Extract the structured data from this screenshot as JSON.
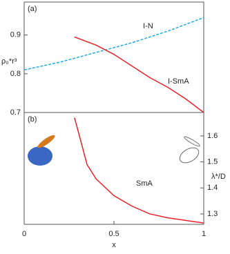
{
  "chart_data": [
    {
      "type": "line",
      "label": "(a)",
      "ylabel": "ρ₀*r³",
      "xlim": [
        0,
        1
      ],
      "ylim": [
        0.7,
        0.985
      ],
      "yticks": [
        0.7,
        0.8,
        0.9
      ],
      "series": [
        {
          "name": "I-N",
          "color": "#1fa9e0",
          "dashed": true,
          "x": [
            0,
            0.2,
            0.4,
            0.6,
            0.8,
            1.0
          ],
          "values": [
            0.81,
            0.83,
            0.855,
            0.88,
            0.91,
            0.945
          ]
        },
        {
          "name": "I-SmA",
          "color": "#e8212a",
          "dashed": false,
          "x": [
            0.28,
            0.4,
            0.5,
            0.6,
            0.7,
            0.8,
            0.9,
            1.0
          ],
          "values": [
            0.895,
            0.874,
            0.85,
            0.82,
            0.79,
            0.765,
            0.735,
            0.7
          ]
        }
      ]
    },
    {
      "type": "line",
      "label": "(b)",
      "xlabel": "x",
      "y2label": "λ*/D",
      "xlim": [
        0,
        1
      ],
      "xticks": [
        0,
        0.5,
        1
      ],
      "y2lim": [
        1.26,
        1.69
      ],
      "y2ticks": [
        1.3,
        1.4,
        1.5,
        1.6
      ],
      "series": [
        {
          "name": "SmA",
          "color": "#e8212a",
          "dashed": false,
          "axis": "y2",
          "x": [
            0.28,
            0.3,
            0.35,
            0.4,
            0.5,
            0.6,
            0.7,
            0.8,
            0.9,
            1.0
          ],
          "values": [
            1.67,
            1.62,
            1.49,
            1.435,
            1.37,
            1.33,
            1.3,
            1.285,
            1.275,
            1.265
          ]
        }
      ]
    }
  ]
}
